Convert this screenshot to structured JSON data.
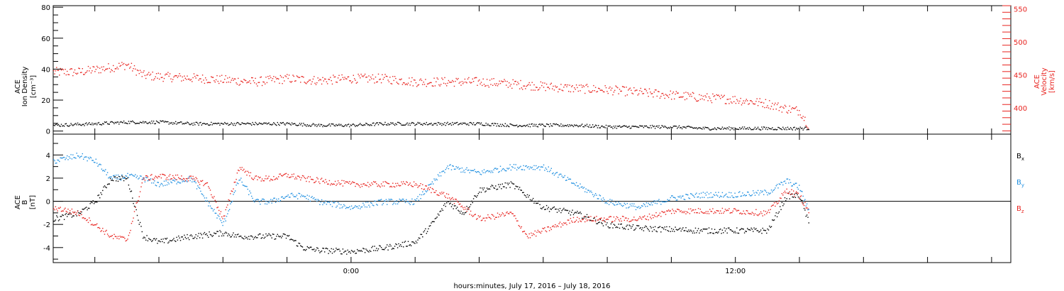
{
  "figure": {
    "xlabel": "hours:minutes, July 17, 2016 – July 18, 2016",
    "x_tick_labels": [
      "0:00",
      "12:00"
    ]
  },
  "colors": {
    "black": "#000000",
    "red": "#e8231f",
    "blue": "#1f8fe0"
  },
  "chart_data": [
    {
      "type": "scatter",
      "panel": "plasma",
      "x_unit": "hours relative to 2016-07-17 00:00",
      "xlim": [
        -9.3,
        20.6
      ],
      "ylabel_left": [
        "ACE",
        "Ion Density",
        "[cm⁻³]"
      ],
      "ylabel_right": [
        "ACE",
        "Velocity",
        "[km/s]"
      ],
      "ylim_left": [
        -2,
        81
      ],
      "ylim_right": [
        360,
        555
      ],
      "yticks_left": [
        "0",
        "20",
        "40",
        "60",
        "80"
      ],
      "yticks_right": [
        "400",
        "450",
        "500",
        "550"
      ],
      "series": [
        {
          "axis": "left",
          "color": "black",
          "x": [
            -9.3,
            -8,
            -7,
            -6,
            -5,
            -4,
            -3,
            -2,
            -1,
            0,
            1,
            2,
            3,
            4,
            5,
            6,
            7,
            8,
            9,
            10,
            11,
            12,
            13,
            14,
            14.3
          ],
          "y": [
            4,
            5,
            6,
            6,
            5,
            5,
            5,
            5,
            4,
            4,
            5,
            5,
            5,
            5,
            4,
            4,
            4,
            3,
            3,
            3,
            2,
            2,
            2,
            2,
            2
          ]
        },
        {
          "axis": "right",
          "color": "red",
          "x": [
            -9.3,
            -8.5,
            -7.5,
            -7,
            -6.5,
            -6,
            -5,
            -4,
            -3,
            -2,
            -1,
            0,
            1,
            2,
            3,
            4,
            5,
            6,
            7,
            8,
            9,
            10,
            11,
            12,
            13,
            13.5,
            14,
            14.3
          ],
          "y": [
            455,
            455,
            462,
            466,
            450,
            448,
            446,
            443,
            440,
            445,
            442,
            445,
            445,
            440,
            440,
            440,
            437,
            433,
            430,
            428,
            424,
            420,
            416,
            413,
            407,
            400,
            396,
            372
          ]
        }
      ]
    },
    {
      "type": "scatter",
      "panel": "magnetic",
      "x_unit": "hours relative to 2016-07-17 00:00",
      "xlim": [
        -9.3,
        20.6
      ],
      "ylabel_left": [
        "ACE",
        "B",
        "[nT]"
      ],
      "ylim": [
        -5.3,
        5.8
      ],
      "yticks": [
        "-4",
        "-2",
        "0",
        "2",
        "4"
      ],
      "zero_line": true,
      "series": [
        {
          "name": "B",
          "sub": "x",
          "color": "black",
          "x": [
            -9.3,
            -8.5,
            -8,
            -7.5,
            -7,
            -6.5,
            -6,
            -5,
            -4,
            -3.5,
            -2,
            -1.5,
            -1,
            0,
            1,
            2,
            2.5,
            3,
            3.5,
            4,
            5,
            6,
            7,
            8,
            9,
            10,
            11,
            12,
            13,
            13.6,
            14,
            14.3
          ],
          "y": [
            -1.5,
            -1,
            0,
            2,
            2,
            -3,
            -3.5,
            -3,
            -2.7,
            -3,
            -3,
            -4,
            -4.2,
            -4.3,
            -4,
            -3.5,
            -2,
            0,
            -1,
            1,
            1.5,
            -0.5,
            -1,
            -2,
            -2.3,
            -2.4,
            -2.5,
            -2.5,
            -2.5,
            0.5,
            0.5,
            -2
          ]
        },
        {
          "name": "B",
          "sub": "y",
          "color": "blue",
          "x": [
            -9.3,
            -8.5,
            -8,
            -7.5,
            -7,
            -6.5,
            -6,
            -5,
            -4,
            -3.5,
            -3,
            -2.5,
            -2,
            -1.5,
            -1,
            0,
            1,
            2,
            3,
            4,
            5,
            6,
            7,
            8,
            9,
            10,
            11,
            12,
            13,
            13.6,
            14,
            14.3
          ],
          "y": [
            3.5,
            4,
            3.5,
            2,
            2.2,
            2,
            1.5,
            2,
            -2,
            2,
            0,
            0,
            0.5,
            0.5,
            0,
            -0.5,
            0,
            0,
            3,
            2.5,
            3,
            3,
            1.5,
            0,
            -0.5,
            0.3,
            0.6,
            0.6,
            0.8,
            1.8,
            1.2,
            -1
          ]
        },
        {
          "name": "B",
          "sub": "z",
          "color": "red",
          "x": [
            -9.3,
            -8.5,
            -8,
            -7.5,
            -7,
            -6.5,
            -6,
            -5,
            -4.5,
            -4,
            -3.5,
            -3,
            -2.5,
            -2,
            -1.5,
            -1,
            0,
            1,
            2,
            3,
            4,
            5,
            5.5,
            6,
            7,
            8,
            9,
            10,
            11,
            12,
            13,
            13.6,
            14,
            14.3
          ],
          "y": [
            -0.5,
            -1,
            -2,
            -3,
            -3.3,
            2,
            2.2,
            2,
            1.5,
            -1.5,
            3,
            2,
            2,
            2.3,
            2,
            1.8,
            1.5,
            1.5,
            1.5,
            0.5,
            -1.5,
            -1,
            -3,
            -2.5,
            -1.5,
            -1.5,
            -1.5,
            -0.8,
            -0.8,
            -0.8,
            -1,
            1,
            0.5,
            -1
          ]
        }
      ]
    }
  ]
}
